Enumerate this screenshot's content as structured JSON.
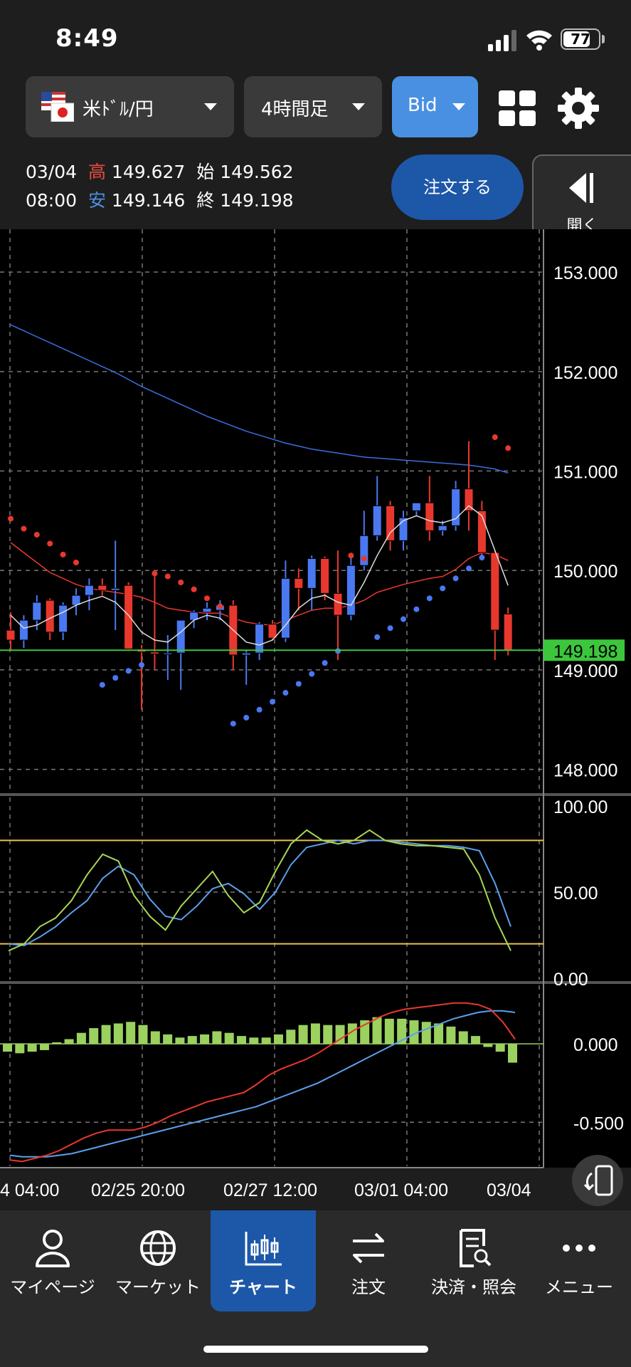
{
  "status": {
    "time": "8:49",
    "battery": "77",
    "battery_level": 0.77
  },
  "header": {
    "pair": "米ﾄﾞﾙ/円",
    "timeframe": "4時間足",
    "price_type": "Bid",
    "ohlc": {
      "date": "03/04",
      "time": "08:00",
      "high_label": "高",
      "high": "149.627",
      "open_label": "始",
      "open": "149.562",
      "low_label": "安",
      "low": "149.146",
      "close_label": "終",
      "close": "149.198"
    },
    "order_label": "注文する",
    "open_label": "開く"
  },
  "chart_data": [
    {
      "type": "candlestick",
      "price_axis": [
        "153.000",
        "152.000",
        "151.000",
        "150.000",
        "149.000",
        "148.000"
      ],
      "ylim": [
        147.99,
        153.13
      ],
      "current_price": "149.198",
      "candles": [
        [
          149.4,
          149.58,
          149.2,
          149.3
        ],
        [
          149.3,
          149.55,
          149.22,
          149.5
        ],
        [
          149.5,
          149.75,
          149.4,
          149.68
        ],
        [
          149.7,
          149.72,
          149.3,
          149.38
        ],
        [
          149.38,
          149.68,
          149.3,
          149.65
        ],
        [
          149.65,
          149.82,
          149.55,
          149.75
        ],
        [
          149.75,
          149.92,
          149.6,
          149.85
        ],
        [
          149.85,
          149.92,
          149.75,
          149.8
        ],
        [
          149.8,
          150.3,
          149.4,
          149.82
        ],
        [
          149.85,
          149.88,
          149.2,
          149.21
        ],
        [
          149.21,
          149.25,
          148.6,
          149.18
        ],
        [
          149.18,
          149.95,
          149.0,
          149.16
        ],
        [
          149.16,
          149.35,
          148.9,
          149.17
        ],
        [
          149.17,
          149.5,
          148.8,
          149.5
        ],
        [
          149.5,
          149.6,
          149.42,
          149.58
        ],
        [
          149.58,
          149.68,
          149.5,
          149.62
        ],
        [
          149.6,
          149.7,
          149.5,
          149.65
        ],
        [
          149.65,
          149.7,
          149.0,
          149.15
        ],
        [
          149.15,
          149.2,
          148.85,
          149.17
        ],
        [
          149.17,
          149.48,
          149.1,
          149.46
        ],
        [
          149.46,
          149.5,
          149.3,
          149.32
        ],
        [
          149.32,
          150.1,
          149.28,
          149.92
        ],
        [
          149.92,
          150.02,
          149.6,
          149.82
        ],
        [
          149.82,
          150.15,
          149.6,
          150.12
        ],
        [
          150.12,
          150.14,
          149.7,
          149.77
        ],
        [
          149.77,
          150.2,
          149.1,
          149.55
        ],
        [
          149.55,
          150.15,
          149.5,
          150.05
        ],
        [
          150.05,
          150.6,
          150.0,
          150.35
        ],
        [
          150.35,
          150.95,
          150.3,
          150.65
        ],
        [
          150.65,
          150.7,
          150.2,
          150.3
        ],
        [
          150.3,
          150.6,
          150.2,
          150.53
        ],
        [
          150.6,
          150.65,
          150.55,
          150.68
        ],
        [
          150.68,
          150.95,
          150.3,
          150.4
        ],
        [
          150.4,
          150.5,
          150.35,
          150.45
        ],
        [
          150.45,
          150.9,
          150.4,
          150.82
        ],
        [
          150.82,
          151.3,
          150.4,
          150.6
        ],
        [
          150.6,
          150.7,
          150.1,
          150.18
        ],
        [
          150.18,
          150.2,
          149.1,
          149.4
        ],
        [
          149.562,
          149.627,
          149.146,
          149.198
        ]
      ],
      "ma_long": [
        152.47,
        152.41,
        152.35,
        152.29,
        152.23,
        152.17,
        152.11,
        152.05,
        151.99,
        151.92,
        151.85,
        151.79,
        151.73,
        151.67,
        151.61,
        151.55,
        151.5,
        151.45,
        151.4,
        151.36,
        151.32,
        151.28,
        151.25,
        151.22,
        151.2,
        151.18,
        151.16,
        151.14,
        151.13,
        151.12,
        151.11,
        151.1,
        151.09,
        151.08,
        151.07,
        151.06,
        151.04,
        151.02,
        150.98
      ],
      "ma_mid": [
        150.28,
        150.18,
        150.08,
        149.98,
        149.92,
        149.86,
        149.82,
        149.8,
        149.78,
        149.76,
        149.73,
        149.68,
        149.62,
        149.6,
        149.58,
        149.57,
        149.57,
        149.52,
        149.48,
        149.46,
        149.45,
        149.5,
        149.55,
        149.6,
        149.62,
        149.62,
        149.65,
        149.7,
        149.78,
        149.82,
        149.86,
        149.89,
        149.92,
        149.94,
        150.01,
        150.12,
        150.18,
        150.16,
        150.1
      ],
      "ma_short": [
        149.55,
        149.42,
        149.45,
        149.52,
        149.58,
        149.65,
        149.7,
        149.74,
        149.68,
        149.55,
        149.38,
        149.3,
        149.28,
        149.38,
        149.5,
        149.55,
        149.52,
        149.4,
        149.28,
        149.25,
        149.3,
        149.45,
        149.62,
        149.72,
        149.75,
        149.68,
        149.65,
        149.88,
        150.15,
        150.38,
        150.5,
        150.55,
        150.5,
        150.48,
        150.52,
        150.65,
        150.55,
        150.2,
        149.85
      ],
      "sar": [
        [
          0,
          150.52,
          "red"
        ],
        [
          1,
          150.42,
          "red"
        ],
        [
          2,
          150.36,
          "red"
        ],
        [
          3,
          150.27,
          "red"
        ],
        [
          4,
          150.16,
          "red"
        ],
        [
          5,
          150.08,
          "red"
        ],
        [
          7,
          148.85,
          "blue"
        ],
        [
          8,
          148.92,
          "blue"
        ],
        [
          9,
          148.99,
          "blue"
        ],
        [
          10,
          149.05,
          "blue"
        ],
        [
          11,
          149.97,
          "red"
        ],
        [
          12,
          149.94,
          "red"
        ],
        [
          13,
          149.88,
          "red"
        ],
        [
          14,
          149.81,
          "red"
        ],
        [
          15,
          149.72,
          "red"
        ],
        [
          16,
          149.64,
          "red"
        ],
        [
          17,
          148.46,
          "blue"
        ],
        [
          18,
          148.52,
          "blue"
        ],
        [
          19,
          148.6,
          "blue"
        ],
        [
          20,
          148.68,
          "blue"
        ],
        [
          21,
          148.77,
          "blue"
        ],
        [
          22,
          148.86,
          "blue"
        ],
        [
          23,
          148.96,
          "blue"
        ],
        [
          24,
          149.07,
          "blue"
        ],
        [
          25,
          149.19,
          "blue"
        ],
        [
          26,
          150.15,
          "red"
        ],
        [
          27,
          150.12,
          "red"
        ],
        [
          28,
          149.33,
          "blue"
        ],
        [
          29,
          149.42,
          "blue"
        ],
        [
          30,
          149.51,
          "blue"
        ],
        [
          31,
          149.61,
          "blue"
        ],
        [
          32,
          149.72,
          "blue"
        ],
        [
          33,
          149.82,
          "blue"
        ],
        [
          34,
          149.92,
          "blue"
        ],
        [
          35,
          150.02,
          "blue"
        ],
        [
          36,
          150.13,
          "blue"
        ],
        [
          37,
          151.34,
          "red"
        ],
        [
          38,
          151.23,
          "red"
        ]
      ]
    },
    {
      "type": "line",
      "axis": [
        "100.00",
        "50.00",
        "0.00"
      ],
      "ylim": [
        0,
        100
      ],
      "levels": [
        80,
        20
      ],
      "k": [
        16,
        20,
        30,
        35,
        45,
        60,
        72,
        68,
        48,
        36,
        28,
        42,
        52,
        62,
        48,
        38,
        44,
        62,
        78,
        86,
        80,
        78,
        80,
        86,
        80,
        78,
        77,
        77,
        76,
        75,
        60,
        35,
        16
      ],
      "d": [
        20,
        19,
        24,
        30,
        38,
        45,
        58,
        65,
        60,
        46,
        36,
        34,
        42,
        52,
        55,
        49,
        40,
        50,
        66,
        76,
        78,
        80,
        78,
        80,
        80,
        79,
        78,
        77,
        77,
        76,
        74,
        55,
        30
      ]
    },
    {
      "type": "bar",
      "axis": [
        "0.000",
        "-0.500"
      ],
      "ylim": [
        -0.78,
        0.3
      ],
      "hist": [
        -0.05,
        -0.06,
        -0.05,
        -0.04,
        0.01,
        0.03,
        0.07,
        0.1,
        0.12,
        0.13,
        0.14,
        0.12,
        0.08,
        0.06,
        0.04,
        0.05,
        0.06,
        0.08,
        0.07,
        0.05,
        0.04,
        0.04,
        0.06,
        0.09,
        0.12,
        0.13,
        0.12,
        0.12,
        0.13,
        0.15,
        0.17,
        0.16,
        0.16,
        0.15,
        0.14,
        0.13,
        0.11,
        0.08,
        0.05,
        -0.02,
        -0.05,
        -0.12
      ],
      "macd": [
        -0.74,
        -0.75,
        -0.73,
        -0.71,
        -0.68,
        -0.64,
        -0.6,
        -0.57,
        -0.55,
        -0.55,
        -0.55,
        -0.53,
        -0.5,
        -0.46,
        -0.43,
        -0.4,
        -0.37,
        -0.35,
        -0.33,
        -0.31,
        -0.26,
        -0.2,
        -0.16,
        -0.13,
        -0.1,
        -0.06,
        -0.01,
        0.04,
        0.09,
        0.13,
        0.17,
        0.2,
        0.22,
        0.23,
        0.24,
        0.25,
        0.26,
        0.26,
        0.25,
        0.22,
        0.14,
        0.03
      ],
      "signal": [
        -0.71,
        -0.72,
        -0.72,
        -0.72,
        -0.71,
        -0.7,
        -0.68,
        -0.66,
        -0.64,
        -0.62,
        -0.6,
        -0.58,
        -0.56,
        -0.54,
        -0.52,
        -0.5,
        -0.48,
        -0.46,
        -0.44,
        -0.42,
        -0.4,
        -0.37,
        -0.34,
        -0.31,
        -0.28,
        -0.25,
        -0.21,
        -0.17,
        -0.13,
        -0.09,
        -0.05,
        -0.01,
        0.03,
        0.07,
        0.1,
        0.13,
        0.16,
        0.18,
        0.2,
        0.21,
        0.21,
        0.2
      ]
    }
  ],
  "time_axis": [
    "4 04:00",
    "02/25 20:00",
    "02/27 12:00",
    "03/01 04:00",
    "03/04"
  ],
  "nav": {
    "items": [
      {
        "label": "マイページ",
        "icon": "person-icon"
      },
      {
        "label": "マーケット",
        "icon": "globe-icon"
      },
      {
        "label": "チャート",
        "icon": "candlestick-chart-icon"
      },
      {
        "label": "注文",
        "icon": "swap-arrows-icon"
      },
      {
        "label": "決済・照会",
        "icon": "document-search-icon"
      },
      {
        "label": "メニュー",
        "icon": "more-dots-icon"
      }
    ],
    "active": 2
  },
  "colors": {
    "up": "#4a78f0",
    "down": "#e8382e",
    "ma_long": "#3a6fe0",
    "ma_mid": "#e8382e",
    "ma_short": "#dddddd",
    "stoch_k": "#a8d655",
    "stoch_d": "#5aa0ee",
    "level": "#e8c14a",
    "hist": "#9bd15f",
    "current": "#3cc63c",
    "accent": "#1d57a8"
  }
}
